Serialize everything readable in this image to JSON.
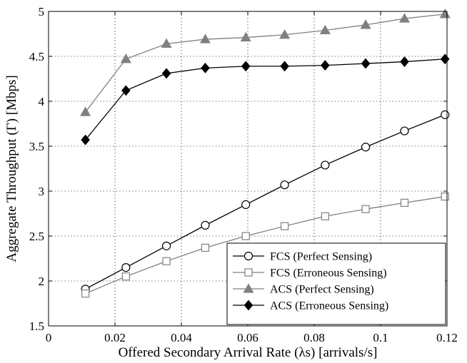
{
  "chart_data": {
    "type": "line",
    "xlabel": "Offered Secondary Arrival Rate (λs) [arrivals/s]",
    "ylabel": "Aggregate Throughput (Γ) [Mbps]",
    "xlim": [
      0,
      0.12
    ],
    "ylim": [
      1.5,
      5
    ],
    "xticks": [
      0,
      0.02,
      0.04,
      0.06,
      0.08,
      0.1,
      0.12
    ],
    "xtick_labels": [
      "0",
      "0.02",
      "0.04",
      "0.06",
      "0.08",
      "0.1",
      "0.12"
    ],
    "yticks": [
      1.5,
      2,
      2.5,
      3,
      3.5,
      4,
      4.5,
      5
    ],
    "ytick_labels": [
      "1.5",
      "2",
      "2.5",
      "3",
      "3.5",
      "4",
      "4.5",
      "5"
    ],
    "grid": true,
    "legend_position": "bottom-right",
    "x": [
      0.0111,
      0.0233,
      0.0355,
      0.0472,
      0.0594,
      0.0711,
      0.0833,
      0.0955,
      0.1072,
      0.1194
    ],
    "series": [
      {
        "name": "FCS (Perfect Sensing)",
        "marker": "circle",
        "color": "#000000",
        "values": [
          1.91,
          2.15,
          2.39,
          2.62,
          2.85,
          3.07,
          3.29,
          3.49,
          3.67,
          3.85
        ]
      },
      {
        "name": "FCS (Erroneous Sensing)",
        "marker": "square",
        "color": "#808080",
        "values": [
          1.86,
          2.05,
          2.22,
          2.37,
          2.5,
          2.61,
          2.72,
          2.8,
          2.87,
          2.94
        ]
      },
      {
        "name": "ACS (Perfect Sensing)",
        "marker": "triangle",
        "color": "#808080",
        "values": [
          3.88,
          4.47,
          4.64,
          4.69,
          4.71,
          4.74,
          4.79,
          4.85,
          4.92,
          4.97
        ]
      },
      {
        "name": "ACS (Erroneous Sensing)",
        "marker": "diamond",
        "color": "#000000",
        "values": [
          3.57,
          4.12,
          4.31,
          4.37,
          4.39,
          4.39,
          4.4,
          4.42,
          4.44,
          4.47
        ]
      }
    ]
  }
}
